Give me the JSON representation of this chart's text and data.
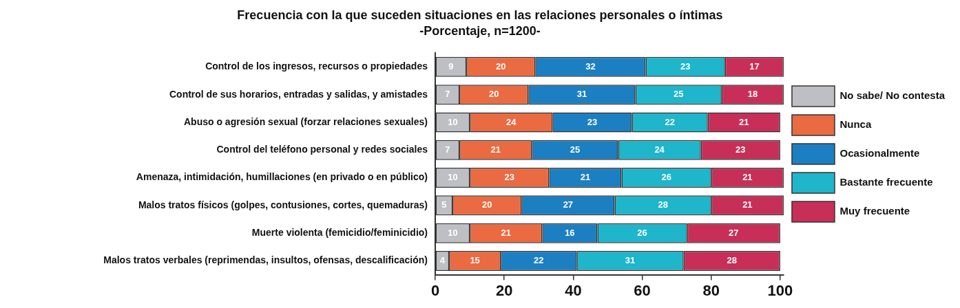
{
  "chart_data": {
    "type": "bar",
    "orientation": "horizontal",
    "stacked": true,
    "title": "Frecuencia con la que suceden situaciones en las relaciones personales o íntimas",
    "subtitle": "-Porcentaje, n=1200-",
    "categories": [
      "Control de los ingresos, recursos o propiedades",
      "Control de sus horarios, entradas y salidas, y amistades",
      "Abuso o agresión sexual (forzar relaciones sexuales)",
      "Control del teléfono personal y redes sociales",
      "Amenaza, intimidación, humillaciones (en privado o en público)",
      "Malos tratos físicos (golpes, contusiones, cortes, quemaduras)",
      "Muerte violenta (femicidio/feminicidio)",
      "Malos tratos verbales (reprimendas, insultos, ofensas, descalificación)"
    ],
    "series": [
      {
        "name": "No sabe/ No contesta",
        "color": "#bebfc4",
        "values": [
          9,
          7,
          10,
          7,
          10,
          5,
          10,
          4
        ]
      },
      {
        "name": "Nunca",
        "color": "#ea6a42",
        "values": [
          20,
          20,
          24,
          21,
          23,
          20,
          21,
          15
        ]
      },
      {
        "name": "Ocasionalmente",
        "color": "#1c7fc2",
        "values": [
          32,
          31,
          23,
          25,
          21,
          27,
          16,
          22
        ]
      },
      {
        "name": "Bastante frecuente",
        "color": "#1fb5cb",
        "values": [
          23,
          25,
          22,
          24,
          26,
          28,
          26,
          31
        ]
      },
      {
        "name": "Muy frecuente",
        "color": "#c72f58",
        "values": [
          17,
          18,
          21,
          23,
          21,
          21,
          27,
          28
        ]
      }
    ],
    "xlim": [
      0,
      101
    ],
    "xticks": [
      0,
      20,
      40,
      60,
      80,
      100
    ],
    "grid": false,
    "legend": "right",
    "data_labels": true
  }
}
